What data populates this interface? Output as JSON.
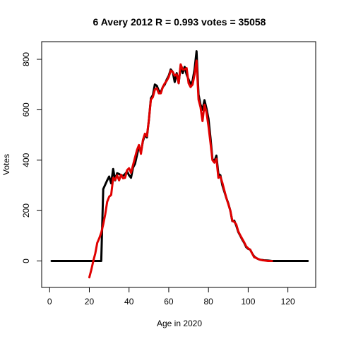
{
  "chart_data": {
    "type": "line",
    "title": "6 Avery 2012 R = 0.993 votes = 35058",
    "xlabel": "Age in 2020",
    "ylabel": "Votes",
    "xlim": [
      -4,
      134
    ],
    "ylim": [
      -105,
      870
    ],
    "xticks": [
      0,
      20,
      40,
      60,
      80,
      100,
      120
    ],
    "yticks": [
      0,
      200,
      400,
      600,
      800
    ],
    "grid": false,
    "series": [
      {
        "color": "#000000",
        "points": [
          [
            1,
            0
          ],
          [
            10,
            0
          ],
          [
            20,
            0
          ],
          [
            26,
            0
          ],
          [
            27,
            285
          ],
          [
            29,
            320
          ],
          [
            30,
            335
          ],
          [
            31,
            308
          ],
          [
            32,
            365
          ],
          [
            33,
            320
          ],
          [
            34,
            348
          ],
          [
            35,
            345
          ],
          [
            36,
            340
          ],
          [
            37,
            338
          ],
          [
            38,
            345
          ],
          [
            39,
            355
          ],
          [
            40,
            340
          ],
          [
            41,
            330
          ],
          [
            42,
            370
          ],
          [
            43,
            385
          ],
          [
            44,
            420
          ],
          [
            45,
            455
          ],
          [
            46,
            432
          ],
          [
            47,
            475
          ],
          [
            48,
            500
          ],
          [
            49,
            490
          ],
          [
            50,
            560
          ],
          [
            51,
            645
          ],
          [
            52,
            658
          ],
          [
            53,
            700
          ],
          [
            54,
            695
          ],
          [
            55,
            675
          ],
          [
            56,
            670
          ],
          [
            57,
            690
          ],
          [
            58,
            700
          ],
          [
            59,
            720
          ],
          [
            60,
            735
          ],
          [
            61,
            760
          ],
          [
            62,
            750
          ],
          [
            63,
            710
          ],
          [
            64,
            745
          ],
          [
            65,
            705
          ],
          [
            66,
            775
          ],
          [
            67,
            745
          ],
          [
            68,
            770
          ],
          [
            69,
            740
          ],
          [
            70,
            720
          ],
          [
            71,
            700
          ],
          [
            72,
            715
          ],
          [
            73,
            760
          ],
          [
            74,
            832
          ],
          [
            75,
            660
          ],
          [
            76,
            620
          ],
          [
            77,
            600
          ],
          [
            78,
            638
          ],
          [
            79,
            605
          ],
          [
            80,
            565
          ],
          [
            81,
            490
          ],
          [
            82,
            405
          ],
          [
            83,
            395
          ],
          [
            84,
            418
          ],
          [
            85,
            345
          ],
          [
            86,
            340
          ],
          [
            87,
            300
          ],
          [
            88,
            275
          ],
          [
            89,
            250
          ],
          [
            90,
            228
          ],
          [
            91,
            200
          ],
          [
            92,
            158
          ],
          [
            93,
            160
          ],
          [
            94,
            140
          ],
          [
            95,
            115
          ],
          [
            96,
            100
          ],
          [
            97,
            85
          ],
          [
            98,
            72
          ],
          [
            99,
            55
          ],
          [
            100,
            48
          ],
          [
            101,
            45
          ],
          [
            102,
            30
          ],
          [
            103,
            18
          ],
          [
            104,
            12
          ],
          [
            105,
            8
          ],
          [
            106,
            5
          ],
          [
            108,
            3
          ],
          [
            110,
            2
          ],
          [
            112,
            0
          ],
          [
            120,
            0
          ],
          [
            130,
            0
          ]
        ]
      },
      {
        "color": "#e00000",
        "points": [
          [
            20,
            -65
          ],
          [
            21,
            -35
          ],
          [
            22,
            0
          ],
          [
            23,
            30
          ],
          [
            24,
            72
          ],
          [
            25,
            90
          ],
          [
            26,
            112
          ],
          [
            27,
            145
          ],
          [
            28,
            185
          ],
          [
            29,
            235
          ],
          [
            30,
            255
          ],
          [
            31,
            262
          ],
          [
            32,
            330
          ],
          [
            33,
            322
          ],
          [
            34,
            340
          ],
          [
            35,
            320
          ],
          [
            36,
            342
          ],
          [
            37,
            328
          ],
          [
            38,
            330
          ],
          [
            39,
            360
          ],
          [
            40,
            368
          ],
          [
            41,
            350
          ],
          [
            42,
            380
          ],
          [
            43,
            410
          ],
          [
            44,
            440
          ],
          [
            45,
            460
          ],
          [
            46,
            425
          ],
          [
            47,
            480
          ],
          [
            48,
            505
          ],
          [
            49,
            495
          ],
          [
            50,
            560
          ],
          [
            51,
            640
          ],
          [
            52,
            650
          ],
          [
            53,
            680
          ],
          [
            54,
            685
          ],
          [
            55,
            665
          ],
          [
            56,
            665
          ],
          [
            57,
            690
          ],
          [
            58,
            705
          ],
          [
            59,
            715
          ],
          [
            60,
            730
          ],
          [
            61,
            755
          ],
          [
            62,
            750
          ],
          [
            63,
            735
          ],
          [
            64,
            740
          ],
          [
            65,
            705
          ],
          [
            66,
            780
          ],
          [
            67,
            760
          ],
          [
            68,
            760
          ],
          [
            69,
            765
          ],
          [
            70,
            705
          ],
          [
            71,
            690
          ],
          [
            72,
            700
          ],
          [
            73,
            740
          ],
          [
            74,
            795
          ],
          [
            75,
            640
          ],
          [
            76,
            610
          ],
          [
            77,
            555
          ],
          [
            78,
            620
          ],
          [
            79,
            590
          ],
          [
            80,
            535
          ],
          [
            81,
            470
          ],
          [
            82,
            400
          ],
          [
            83,
            390
          ],
          [
            84,
            405
          ],
          [
            85,
            330
          ],
          [
            86,
            335
          ],
          [
            87,
            310
          ],
          [
            88,
            280
          ],
          [
            89,
            250
          ],
          [
            90,
            225
          ],
          [
            91,
            200
          ],
          [
            92,
            160
          ],
          [
            93,
            155
          ],
          [
            94,
            145
          ],
          [
            95,
            118
          ],
          [
            96,
            102
          ],
          [
            97,
            88
          ],
          [
            98,
            74
          ],
          [
            99,
            58
          ],
          [
            100,
            50
          ],
          [
            101,
            45
          ],
          [
            102,
            30
          ],
          [
            103,
            15
          ],
          [
            104,
            12
          ],
          [
            105,
            8
          ],
          [
            106,
            5
          ],
          [
            107,
            3
          ],
          [
            108,
            2
          ],
          [
            110,
            0
          ],
          [
            112,
            0
          ]
        ]
      }
    ]
  }
}
